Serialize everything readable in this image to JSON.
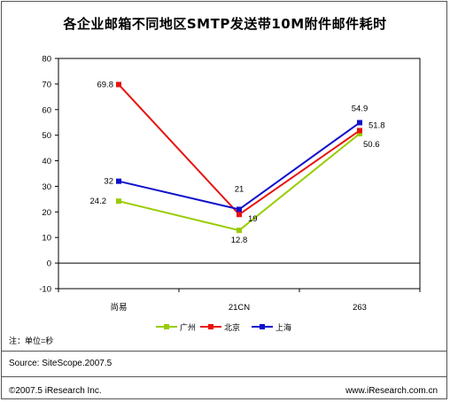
{
  "title": "各企业邮箱不同地区SMTP发送带10M附件邮件耗时",
  "note": "注：单位=秒",
  "source": "Source:  SiteScope.2007.5",
  "copyright": "©2007.5  iResearch Inc.",
  "website": "www.iResearch.com.cn",
  "chart_data": {
    "type": "line",
    "categories": [
      "尚易",
      "21CN",
      "263"
    ],
    "ylim": [
      -10,
      80
    ],
    "yticks": [
      80,
      70,
      60,
      50,
      40,
      30,
      20,
      10,
      0,
      -10
    ],
    "grid": false,
    "legend_position": "bottom",
    "series": [
      {
        "name": "广州",
        "color": "#99cc00",
        "values": [
          24.2,
          12.8,
          50.6
        ],
        "labels": [
          "24.2",
          "12.8",
          "50.6"
        ]
      },
      {
        "name": "北京",
        "color": "#e8120c",
        "values": [
          69.8,
          19,
          51.8
        ],
        "labels": [
          "69.8",
          "19",
          "51.8"
        ]
      },
      {
        "name": "上海",
        "color": "#1010cc",
        "values": [
          32,
          21,
          54.9
        ],
        "labels": [
          "32",
          "21",
          "54.9"
        ]
      }
    ]
  }
}
